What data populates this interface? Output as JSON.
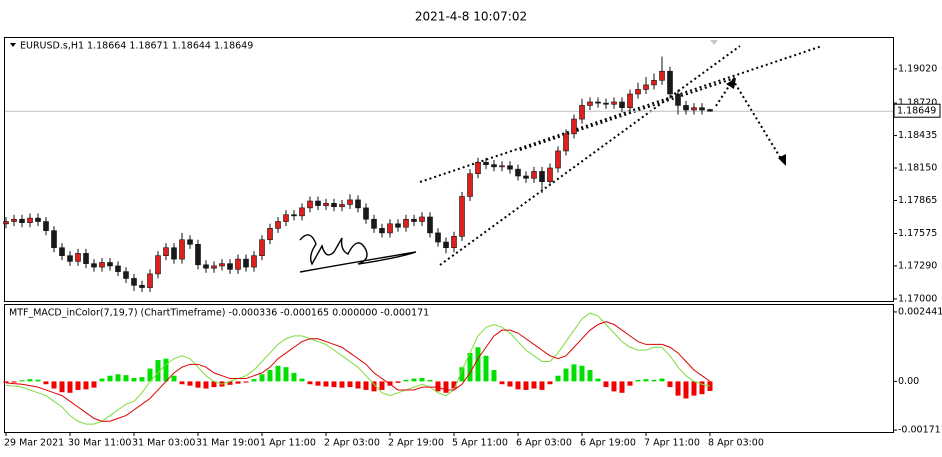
{
  "window_title": "2021-4-8 10:07:02",
  "chart_data": [
    {
      "type": "candlestick",
      "title": "EURUSD.s,H1  1.18664 1.18671 1.18644 1.18649",
      "categories": [
        "29 Mar 2021",
        null,
        null,
        null,
        null,
        null,
        null,
        null,
        "30 Mar 11:00",
        null,
        null,
        null,
        null,
        null,
        null,
        null,
        "31 Mar 03:00",
        null,
        null,
        null,
        null,
        null,
        null,
        null,
        "31 Mar 19:00",
        null,
        null,
        null,
        null,
        null,
        null,
        null,
        "1 Apr 11:00",
        null,
        null,
        null,
        null,
        null,
        null,
        null,
        "2 Apr 03:00",
        null,
        null,
        null,
        null,
        null,
        null,
        null,
        "2 Apr 19:00",
        null,
        null,
        null,
        null,
        null,
        null,
        null,
        "5 Apr 11:00",
        null,
        null,
        null,
        null,
        null,
        null,
        null,
        "6 Apr 03:00",
        null,
        null,
        null,
        null,
        null,
        null,
        null,
        "6 Apr 19:00",
        null,
        null,
        null,
        null,
        null,
        null,
        null,
        "7 Apr 11:00",
        null,
        null,
        null,
        null,
        null,
        null,
        null,
        "8 Apr 03:00"
      ],
      "open": [
        1.1766,
        1.1768,
        1.177,
        1.1767,
        1.1771,
        1.1768,
        1.176,
        1.1745,
        1.1738,
        1.1733,
        1.174,
        1.1731,
        1.1728,
        1.1732,
        1.1729,
        1.1724,
        1.1718,
        1.1712,
        1.171,
        1.1722,
        1.1738,
        1.1745,
        1.1735,
        1.1752,
        1.1748,
        1.173,
        1.1727,
        1.1729,
        1.1731,
        1.1726,
        1.1735,
        1.1728,
        1.1738,
        1.1752,
        1.1762,
        1.1768,
        1.1774,
        1.1773,
        1.178,
        1.1786,
        1.1782,
        1.1784,
        1.1781,
        1.1783,
        1.1787,
        1.178,
        1.177,
        1.1762,
        1.1758,
        1.1766,
        1.1763,
        1.177,
        1.1768,
        1.1772,
        1.1758,
        1.175,
        1.1745,
        1.1755,
        1.179,
        1.181,
        1.182,
        1.1818,
        1.1816,
        1.1817,
        1.1814,
        1.1808,
        1.1806,
        1.1812,
        1.1803,
        1.1815,
        1.183,
        1.1845,
        1.1858,
        1.187,
        1.1873,
        1.1872,
        1.1871,
        1.1873,
        1.1868,
        1.188,
        1.1884,
        1.1888,
        1.1892,
        1.19,
        1.188,
        1.187,
        1.1866,
        1.1868,
        1.18664
      ],
      "high": [
        1.1772,
        1.1774,
        1.1774,
        1.1775,
        1.1775,
        1.1772,
        1.1764,
        1.1749,
        1.1742,
        1.1744,
        1.1744,
        1.1735,
        1.1736,
        1.1736,
        1.1733,
        1.1728,
        1.1722,
        1.1716,
        1.1726,
        1.1742,
        1.1749,
        1.1749,
        1.1758,
        1.1756,
        1.1752,
        1.1734,
        1.1733,
        1.1735,
        1.1735,
        1.1739,
        1.1739,
        1.1742,
        1.1756,
        1.1766,
        1.1772,
        1.1778,
        1.1778,
        1.1784,
        1.179,
        1.179,
        1.1788,
        1.1788,
        1.1787,
        1.1792,
        1.1791,
        1.1784,
        1.1774,
        1.1766,
        1.177,
        1.177,
        1.1774,
        1.1774,
        1.1776,
        1.1776,
        1.1762,
        1.1754,
        1.1759,
        1.1794,
        1.1814,
        1.1824,
        1.1824,
        1.1822,
        1.1821,
        1.1821,
        1.1818,
        1.1812,
        1.1816,
        1.1816,
        1.1819,
        1.1834,
        1.1849,
        1.1862,
        1.1876,
        1.1877,
        1.1877,
        1.1876,
        1.1877,
        1.1877,
        1.1884,
        1.189,
        1.1895,
        1.1898,
        1.1913,
        1.1904,
        1.1884,
        1.1874,
        1.1872,
        1.1872,
        1.18671
      ],
      "low": [
        1.1762,
        1.1764,
        1.1763,
        1.1763,
        1.1764,
        1.1756,
        1.1741,
        1.1734,
        1.1729,
        1.1729,
        1.1727,
        1.1724,
        1.1724,
        1.1725,
        1.172,
        1.1714,
        1.1707,
        1.1706,
        1.1706,
        1.1718,
        1.1734,
        1.1731,
        1.1731,
        1.1744,
        1.1726,
        1.1723,
        1.1723,
        1.1725,
        1.1722,
        1.1722,
        1.1724,
        1.1724,
        1.1734,
        1.1748,
        1.1758,
        1.1764,
        1.1769,
        1.1769,
        1.1776,
        1.1778,
        1.1778,
        1.1777,
        1.1777,
        1.1779,
        1.1776,
        1.1766,
        1.1758,
        1.1754,
        1.1754,
        1.1759,
        1.1759,
        1.1764,
        1.1764,
        1.1754,
        1.1746,
        1.174,
        1.1741,
        1.1751,
        1.1786,
        1.1806,
        1.1814,
        1.1812,
        1.1812,
        1.181,
        1.1804,
        1.1802,
        1.1802,
        1.1793,
        1.1799,
        1.1811,
        1.1826,
        1.1841,
        1.1854,
        1.1866,
        1.1868,
        1.1867,
        1.1867,
        1.1864,
        1.1864,
        1.1876,
        1.188,
        1.1884,
        1.1888,
        1.1876,
        1.1862,
        1.1862,
        1.1862,
        1.1862,
        1.18644
      ],
      "close": [
        1.1768,
        1.177,
        1.1767,
        1.1771,
        1.1768,
        1.176,
        1.1745,
        1.1738,
        1.1733,
        1.174,
        1.1731,
        1.1728,
        1.1732,
        1.1729,
        1.1724,
        1.1718,
        1.1712,
        1.171,
        1.1722,
        1.1738,
        1.1745,
        1.1735,
        1.1752,
        1.1748,
        1.173,
        1.1727,
        1.1729,
        1.1731,
        1.1726,
        1.1735,
        1.1728,
        1.1738,
        1.1752,
        1.1762,
        1.1768,
        1.1774,
        1.1773,
        1.178,
        1.1786,
        1.1782,
        1.1784,
        1.1781,
        1.1783,
        1.1787,
        1.178,
        1.177,
        1.1762,
        1.1758,
        1.1766,
        1.1763,
        1.177,
        1.1768,
        1.1772,
        1.1758,
        1.175,
        1.1745,
        1.1755,
        1.179,
        1.181,
        1.182,
        1.1818,
        1.1816,
        1.1817,
        1.1814,
        1.1808,
        1.1806,
        1.1812,
        1.1803,
        1.1815,
        1.183,
        1.1845,
        1.1858,
        1.187,
        1.1873,
        1.1872,
        1.1871,
        1.1873,
        1.1868,
        1.188,
        1.1884,
        1.1888,
        1.1892,
        1.19,
        1.188,
        1.187,
        1.1866,
        1.1868,
        1.1866,
        1.18649
      ],
      "up_color": "#e0201e",
      "down_color": "#1a1a1a",
      "current_price": 1.18649,
      "ylim": [
        1.16982,
        1.19292
      ],
      "yticks": [
        {
          "value": 1.17,
          "label": "1.17000"
        },
        {
          "value": 1.1729,
          "label": "1.17290"
        },
        {
          "value": 1.17575,
          "label": "1.17575"
        },
        {
          "value": 1.17865,
          "label": "1.17865"
        },
        {
          "value": 1.1815,
          "label": "1.18150"
        },
        {
          "value": 1.18435,
          "label": "1.18435"
        },
        {
          "value": 1.1872,
          "label": "1.18720"
        },
        {
          "value": 1.1902,
          "label": "1.19020"
        }
      ]
    },
    {
      "type": "macd",
      "title": "MTF_MACD_inColor(7,19,7) (ChartTimeframe) -0.000336 -0.000165 0.000000 -0.000171",
      "histogram": [
        -5e-05,
        -4e-05,
        4e-05,
        8e-05,
        6e-05,
        -0.0001,
        -0.00025,
        -0.00038,
        -0.0004,
        -0.0003,
        -0.00028,
        -0.00022,
        0.0001,
        0.0002,
        0.00025,
        0.00022,
        0.00012,
        0.00015,
        0.00045,
        0.00075,
        0.0008,
        0.0002,
        -0.0001,
        -0.00015,
        -0.00022,
        -0.00025,
        -0.0002,
        -0.00018,
        -0.00012,
        -8e-05,
        -4e-05,
        8e-05,
        0.00025,
        0.0004,
        0.00055,
        0.0005,
        0.0003,
        0.0001,
        -0.0001,
        -0.00015,
        -0.00018,
        -0.0002,
        -0.00022,
        -0.0002,
        -0.00025,
        -0.0003,
        -0.00035,
        -0.0003,
        -0.00015,
        -5e-05,
        5e-05,
        0.0001,
        0.00012,
        5e-05,
        -0.00035,
        -0.0004,
        -0.00025,
        0.0005,
        0.001,
        0.0012,
        0.0009,
        0.0004,
        -0.0001,
        -0.00018,
        -0.00028,
        -0.0003,
        -0.00025,
        -0.0003,
        -0.0001,
        0.0002,
        0.00045,
        0.0006,
        0.00055,
        0.0004,
        0.0001,
        -0.0002,
        -0.00035,
        -0.0004,
        -0.00015,
        5e-05,
        8e-05,
        5e-05,
        0.0001,
        -0.0002,
        -0.0005,
        -0.0006,
        -0.0005,
        -0.00045,
        -0.000336
      ],
      "pos_color": "#00e000",
      "neg_color": "#f00000",
      "series": [
        {
          "color": "#7ddc3c",
          "values": [
            -0.00014,
            -0.00016,
            -0.0002,
            -0.0003,
            -0.0004,
            -0.0005,
            -0.0007,
            -0.0009,
            -0.0012,
            -0.0014,
            -0.0015,
            -0.0015,
            -0.0014,
            -0.0012,
            -0.001,
            -0.0008,
            -0.0007,
            -0.0004,
            0,
            0.0003,
            0.0006,
            0.0008,
            0.0009,
            0.0008,
            0.0005,
            0.0002,
            0,
            -0.0001,
            0,
            0.0001,
            0.0002,
            0.0004,
            0.0007,
            0.001,
            0.0013,
            0.0015,
            0.0016,
            0.0016,
            0.0015,
            0.0014,
            0.0013,
            0.0011,
            0.0009,
            0.0007,
            0.0005,
            0.0002,
            -0.0001,
            -0.0004,
            -0.0005,
            -0.0004,
            -0.0003,
            -0.0002,
            -0.0001,
            -0.0002,
            -0.0004,
            -0.0005,
            -0.0003,
            0.0004,
            0.001,
            0.0016,
            0.0019,
            0.002,
            0.0019,
            0.0017,
            0.0014,
            0.0011,
            0.0009,
            0.0007,
            0.0007,
            0.001,
            0.0014,
            0.0018,
            0.0022,
            0.0024,
            0.0023,
            0.002,
            0.0017,
            0.0014,
            0.0012,
            0.0011,
            0.0011,
            0.0012,
            0.0012,
            0.0009,
            0.0005,
            0.0002,
            0,
            -0.0001,
            -0.000165
          ]
        },
        {
          "color": "#e00000",
          "values": [
            -5e-05,
            -8e-05,
            -0.0001,
            -0.00015,
            -0.0002,
            -0.0003,
            -0.0004,
            -0.0005,
            -0.0007,
            -0.0009,
            -0.0011,
            -0.0013,
            -0.0014,
            -0.0014,
            -0.0013,
            -0.0012,
            -0.001,
            -0.0008,
            -0.0006,
            -0.0003,
            0,
            0.0003,
            0.0005,
            0.0006,
            0.0006,
            0.0005,
            0.0003,
            0.0002,
            0.0001,
            0.0001,
            0.0001,
            0.0002,
            0.0003,
            0.0005,
            0.0008,
            0.001,
            0.0012,
            0.0014,
            0.0015,
            0.0015,
            0.0014,
            0.0013,
            0.0012,
            0.001,
            0.0008,
            0.0006,
            0.0003,
            0.0001,
            -0.0001,
            -0.0003,
            -0.0003,
            -0.0003,
            -0.0002,
            -0.0002,
            -0.0002,
            -0.0003,
            -0.0003,
            -0.0001,
            0.0003,
            0.0008,
            0.0012,
            0.0016,
            0.0018,
            0.0018,
            0.0017,
            0.0015,
            0.0013,
            0.0011,
            0.0009,
            0.0008,
            0.0009,
            0.0012,
            0.0015,
            0.0018,
            0.002,
            0.0021,
            0.002,
            0.0018,
            0.0016,
            0.0014,
            0.0013,
            0.0013,
            0.0013,
            0.0012,
            0.001,
            0.0007,
            0.0004,
            0.0002,
            0
          ]
        }
      ],
      "ylim": [
        -0.001778,
        0.002685
      ],
      "yticks": [
        -0.001711,
        {
          "value": 0,
          "label": "0.00"
        },
        0.002441
      ]
    }
  ]
}
